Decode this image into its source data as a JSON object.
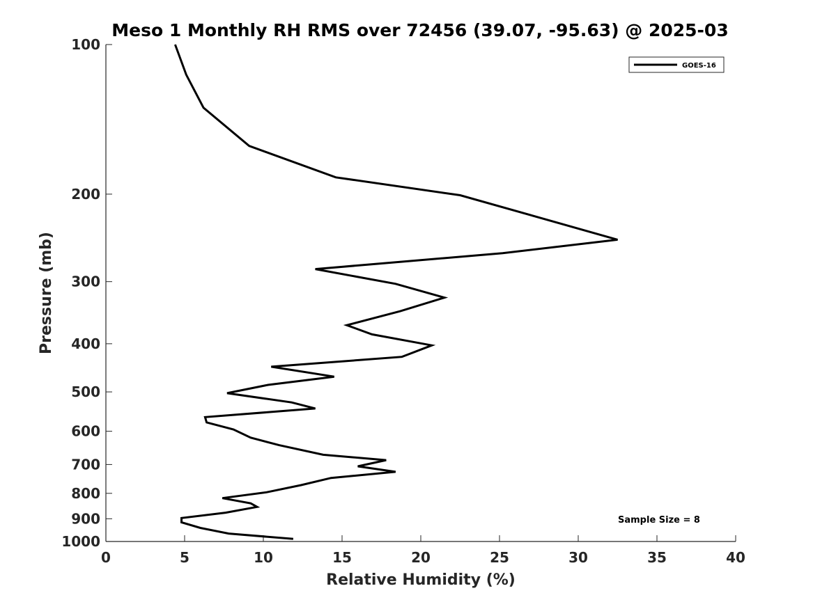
{
  "chart_data": {
    "type": "line",
    "title": "Meso 1 Monthly RH RMS over 72456 (39.07, -95.63) @ 2025-03",
    "xlabel": "Relative Humidity (%)",
    "ylabel": "Pressure (mb)",
    "xlim": [
      0,
      40
    ],
    "ylim": [
      100,
      1000
    ],
    "y_scale": "log",
    "y_direction": "reversed",
    "x_ticks": [
      "0",
      "5",
      "10",
      "15",
      "20",
      "25",
      "30",
      "35",
      "40"
    ],
    "y_ticks": [
      "100",
      "200",
      "300",
      "400",
      "500",
      "600",
      "700",
      "800",
      "900",
      "1000"
    ],
    "legend_position": "top-right",
    "grid": false,
    "series": [
      {
        "name": "GOES-16",
        "color": "#000000",
        "points": [
          [
            4.4,
            100
          ],
          [
            5.1,
            115
          ],
          [
            6.2,
            134
          ],
          [
            9.1,
            160
          ],
          [
            14.6,
            185
          ],
          [
            22.5,
            201
          ],
          [
            32.5,
            247
          ],
          [
            25.2,
            263
          ],
          [
            13.3,
            283
          ],
          [
            18.4,
            303
          ],
          [
            21.5,
            323
          ],
          [
            18.7,
            344
          ],
          [
            15.3,
            367
          ],
          [
            16.9,
            383
          ],
          [
            20.7,
            403
          ],
          [
            18.8,
            425
          ],
          [
            10.5,
            445
          ],
          [
            14.5,
            466
          ],
          [
            10.3,
            484
          ],
          [
            7.7,
            503
          ],
          [
            11.8,
            525
          ],
          [
            13.3,
            540
          ],
          [
            6.3,
            562
          ],
          [
            6.4,
            576
          ],
          [
            8.1,
            595
          ],
          [
            9.2,
            618
          ],
          [
            11.0,
            640
          ],
          [
            13.8,
            669
          ],
          [
            17.8,
            686
          ],
          [
            16.0,
            706
          ],
          [
            18.4,
            724
          ],
          [
            14.3,
            745
          ],
          [
            12.4,
            770
          ],
          [
            10.2,
            796
          ],
          [
            7.4,
            818
          ],
          [
            9.2,
            838
          ],
          [
            9.6,
            852
          ],
          [
            7.6,
            875
          ],
          [
            4.8,
            897
          ],
          [
            4.8,
            915
          ],
          [
            6.0,
            939
          ],
          [
            7.8,
            964
          ],
          [
            11.9,
            988
          ]
        ]
      }
    ],
    "annotation": "Sample Size = 8"
  }
}
